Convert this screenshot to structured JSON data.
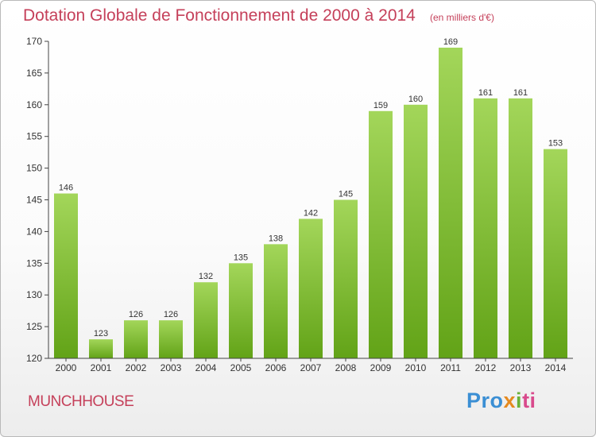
{
  "header": {
    "title": "Dotation Globale de Fonctionnement de 2000 à 2014",
    "subtitle": "(en milliers d'€)"
  },
  "footer": {
    "commune": "MUNCHHOUSE",
    "logo_text": "Proxiti",
    "logo_parts": [
      "Pro",
      "x",
      "i",
      "ti"
    ]
  },
  "colors": {
    "bar_light": "#a3d65a",
    "bar_dark": "#62a317",
    "title": "#c5405a",
    "axis": "#444444"
  },
  "chart_data": {
    "type": "bar",
    "title": "Dotation Globale de Fonctionnement de 2000 à 2014",
    "subtitle": "(en milliers d'€)",
    "categories": [
      "2000",
      "2001",
      "2002",
      "2003",
      "2004",
      "2005",
      "2006",
      "2007",
      "2008",
      "2009",
      "2010",
      "2011",
      "2012",
      "2013",
      "2014"
    ],
    "values": [
      146,
      123,
      126,
      126,
      132,
      135,
      138,
      142,
      145,
      159,
      160,
      169,
      161,
      161,
      153
    ],
    "ylim": [
      120,
      170
    ],
    "yticks": [
      120,
      125,
      130,
      135,
      140,
      145,
      150,
      155,
      160,
      165,
      170
    ],
    "grid": false,
    "legend": "none"
  }
}
